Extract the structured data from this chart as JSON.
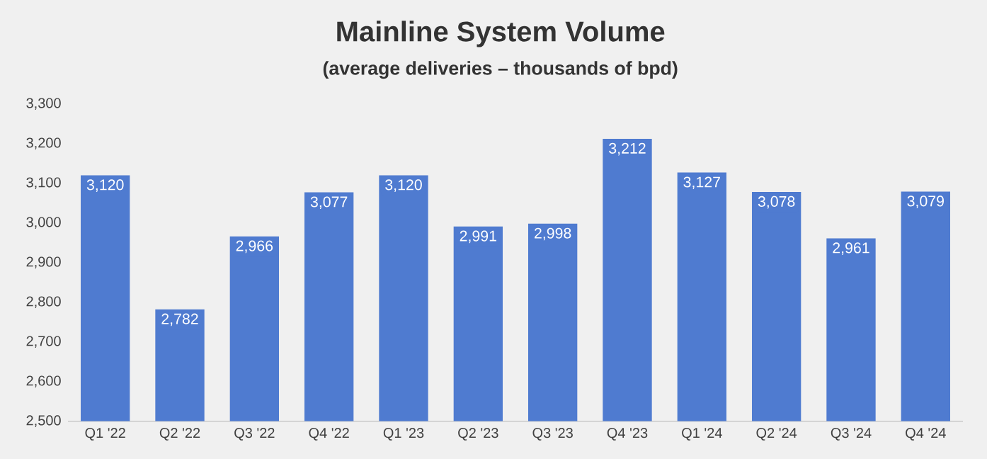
{
  "chart_data": {
    "type": "bar",
    "title": "Mainline System Volume",
    "subtitle": "(average deliveries – thousands of bpd)",
    "categories": [
      "Q1 '22",
      "Q2 '22",
      "Q3 '22",
      "Q4 '22",
      "Q1 '23",
      "Q2 '23",
      "Q3 '23",
      "Q4 '23",
      "Q1 '24",
      "Q2 '24",
      "Q3 '24",
      "Q4 '24"
    ],
    "values": [
      3120,
      2782,
      2966,
      3077,
      3120,
      2991,
      2998,
      3212,
      3127,
      3078,
      2961,
      3079
    ],
    "value_labels": [
      "3,120",
      "2,782",
      "2,966",
      "3,077",
      "3,120",
      "2,991",
      "2,998",
      "3,212",
      "3,127",
      "3,078",
      "2,961",
      "3,079"
    ],
    "color": "#4f7bd0",
    "ylim": [
      2500,
      3300
    ],
    "yticks": [
      {
        "value": 2500,
        "label": "2,500"
      },
      {
        "value": 2600,
        "label": "2,600"
      },
      {
        "value": 2700,
        "label": "2,700"
      },
      {
        "value": 2800,
        "label": "2,800"
      },
      {
        "value": 2900,
        "label": "2,900"
      },
      {
        "value": 3000,
        "label": "3,000"
      },
      {
        "value": 3100,
        "label": "3,100"
      },
      {
        "value": 3200,
        "label": "3,200"
      },
      {
        "value": 3300,
        "label": "3,300"
      }
    ],
    "grid": false
  }
}
